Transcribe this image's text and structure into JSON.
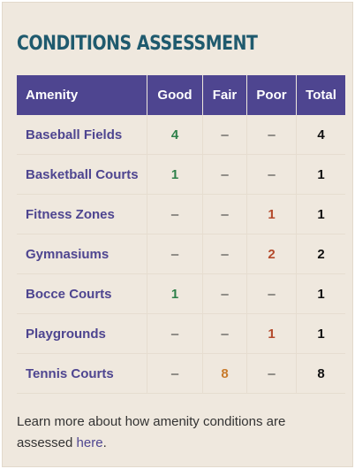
{
  "heading": "CONDITIONS ASSESSMENT",
  "table": {
    "headers": [
      "Amenity",
      "Good",
      "Fair",
      "Poor",
      "Total"
    ],
    "rows": [
      {
        "amenity": "Baseball Fields",
        "good": "4",
        "fair": "–",
        "poor": "–",
        "total": "4"
      },
      {
        "amenity": "Basketball Courts",
        "good": "1",
        "fair": "–",
        "poor": "–",
        "total": "1"
      },
      {
        "amenity": "Fitness Zones",
        "good": "–",
        "fair": "–",
        "poor": "1",
        "total": "1"
      },
      {
        "amenity": "Gymnasiums",
        "good": "–",
        "fair": "–",
        "poor": "2",
        "total": "2"
      },
      {
        "amenity": "Bocce Courts",
        "good": "1",
        "fair": "–",
        "poor": "–",
        "total": "1"
      },
      {
        "amenity": "Playgrounds",
        "good": "–",
        "fair": "–",
        "poor": "1",
        "total": "1"
      },
      {
        "amenity": "Tennis Courts",
        "good": "–",
        "fair": "8",
        "poor": "–",
        "total": "8"
      }
    ]
  },
  "footer": {
    "text": "Learn more about how amenity conditions are assessed ",
    "link": "here",
    "suffix": "."
  },
  "colors": {
    "heading": "#1f5a6e",
    "header_bg": "#4e4590",
    "good": "#2e8049",
    "fair": "#c87a2a",
    "poor": "#b44a2c",
    "panel_bg": "#efe8de"
  }
}
